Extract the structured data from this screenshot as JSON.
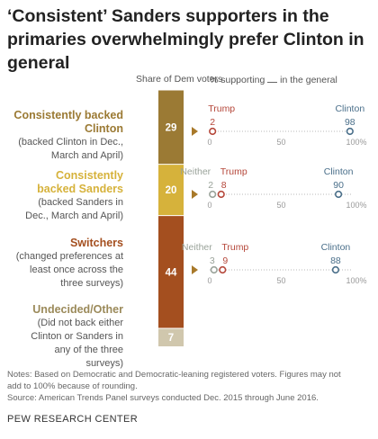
{
  "title": "‘Consistent’ Sanders supporters in the primaries overwhelmingly prefer Clinton in general",
  "headers": {
    "share": "Share of Dem voters",
    "general_prefix": "% supporting",
    "general_suffix": "in the general"
  },
  "groups": [
    {
      "name": "Consistently backed Clinton",
      "desc": "(backed Clinton in Dec., March and April)",
      "color": "#9b7a34"
    },
    {
      "name": "Consistently backed Sanders",
      "desc": "(backed Sanders in Dec., March and April)",
      "color": "#d6b23b"
    },
    {
      "name": "Switchers",
      "desc": "(changed preferences at least once across the three surveys)",
      "color": "#a44f1f"
    },
    {
      "name": "Undecided/Other",
      "desc": "(Did not back either Clinton or Sanders in any of the three surveys)",
      "color": "#d0c7ad"
    }
  ],
  "axis_ticks": [
    "0",
    "50",
    "100%"
  ],
  "series_labels": {
    "neither": "Neither",
    "trump": "Trump",
    "clinton": "Clinton"
  },
  "colors": {
    "trump": "#b5473a",
    "clinton": "#4a6f8a",
    "neither": "#9aa39a",
    "arrow": "#a8792a"
  },
  "chart_data": {
    "type": "composite",
    "stacked_bar": {
      "title": "Share of Dem voters",
      "categories": [
        "Consistently backed Clinton",
        "Consistently backed Sanders",
        "Switchers",
        "Undecided/Other"
      ],
      "values": [
        29,
        20,
        44,
        7
      ]
    },
    "dot_plot": {
      "title": "% supporting __ in the general",
      "xlim": [
        0,
        100
      ],
      "categories": [
        "Consistently backed Clinton",
        "Consistently backed Sanders",
        "Switchers"
      ],
      "series": [
        {
          "name": "Neither",
          "values": [
            null,
            2,
            3
          ]
        },
        {
          "name": "Trump",
          "values": [
            2,
            8,
            9
          ]
        },
        {
          "name": "Clinton",
          "values": [
            98,
            90,
            88
          ]
        }
      ]
    }
  },
  "notes": {
    "line1": "Notes: Based on Democratic and Democratic-leaning registered voters. Figures may not",
    "line2": "add to 100% because of rounding.",
    "source": "Source: American Trends Panel surveys conducted Dec. 2015 through June 2016."
  },
  "brand": "PEW RESEARCH CENTER"
}
